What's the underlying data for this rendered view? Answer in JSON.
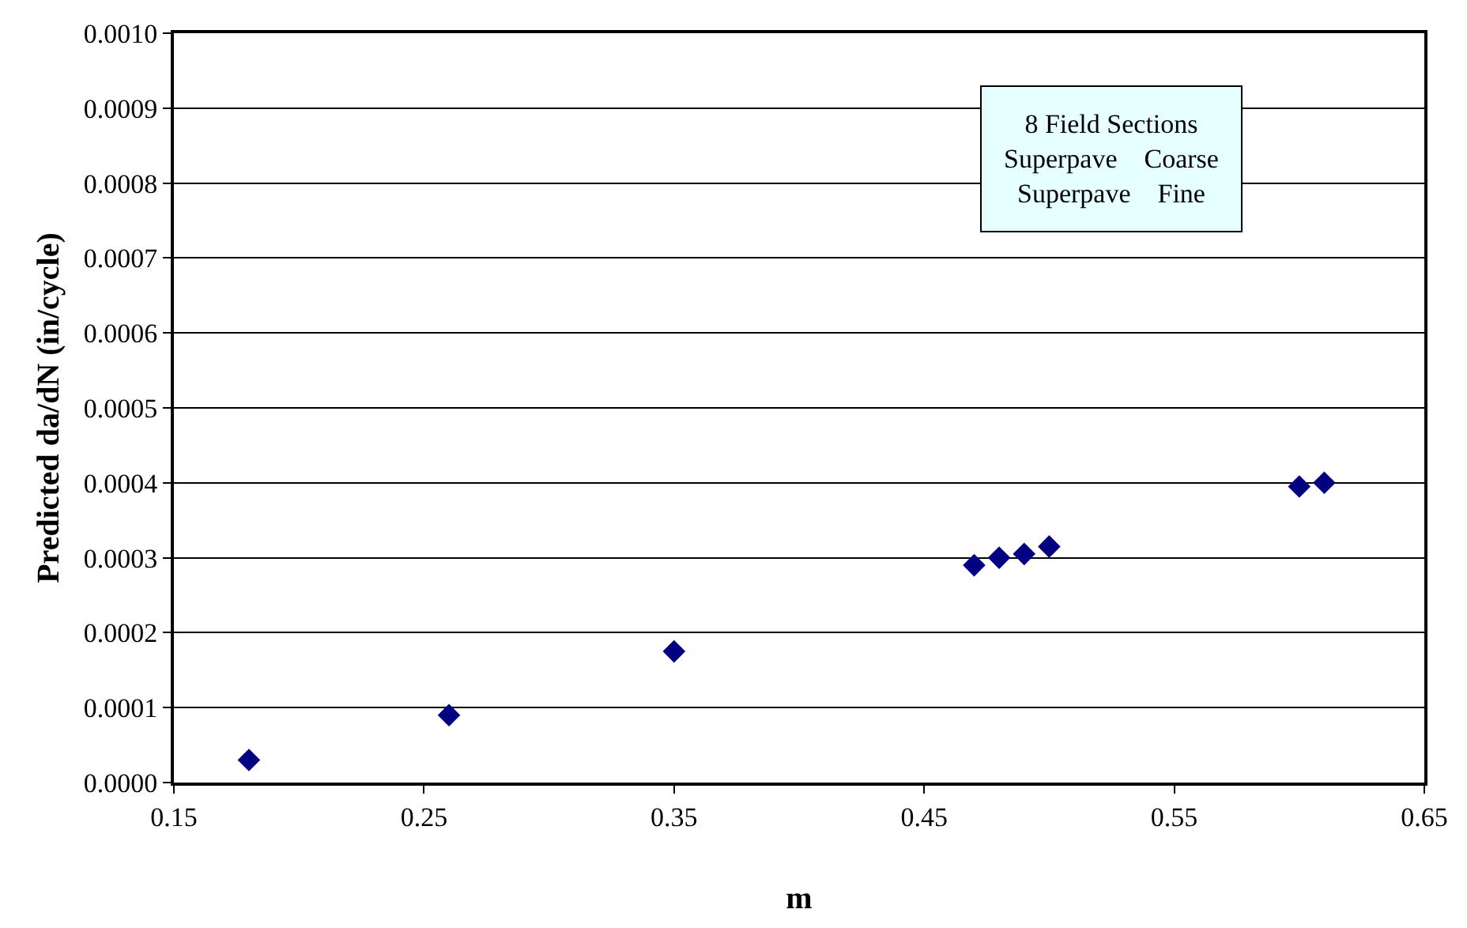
{
  "chart_data": {
    "type": "scatter",
    "xlabel": "m",
    "ylabel": "Predicted da/dN (in/cycle)",
    "annotations": [
      "8 Field Sections",
      "Superpave    Coarse",
      "Superpave    Fine"
    ],
    "x": [
      0.18,
      0.26,
      0.35,
      0.47,
      0.48,
      0.49,
      0.5,
      0.6,
      0.61
    ],
    "series": [
      {
        "color": "#000080",
        "values": [
          3e-05,
          9e-05,
          0.000175,
          0.00029,
          0.0003,
          0.000305,
          0.000315,
          0.000395,
          0.0004
        ]
      }
    ],
    "marker": "diamond",
    "grid": "y",
    "xlim": [
      0.15,
      0.65
    ],
    "xticks": [
      0.15,
      0.25,
      0.35,
      0.45,
      0.55,
      0.65
    ],
    "ylim": [
      0,
      0.001
    ],
    "yticks": [
      {
        "value": 0,
        "label": "0.0000"
      },
      {
        "value": 0.0001,
        "label": "0.0001"
      },
      {
        "value": 0.0002,
        "label": "0.0002"
      },
      {
        "value": 0.0003,
        "label": "0.0003"
      },
      {
        "value": 0.0004,
        "label": "0.0004"
      },
      {
        "value": 0.0005,
        "label": "0.0005"
      },
      {
        "value": 0.0006,
        "label": "0.0006"
      },
      {
        "value": 0.0007,
        "label": "0.0007"
      },
      {
        "value": 0.0008,
        "label": "0.0008"
      },
      {
        "value": 0.0009,
        "label": "0.0009"
      },
      {
        "value": 0.001,
        "label": "0.0010"
      }
    ]
  }
}
